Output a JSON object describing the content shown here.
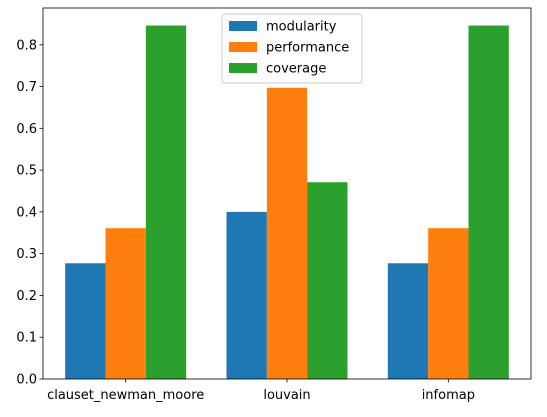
{
  "chart_data": {
    "type": "bar",
    "title": "",
    "xlabel": "",
    "ylabel": "",
    "categories": [
      "clauset_newman_moore",
      "louvain",
      "infomap"
    ],
    "series": [
      {
        "name": "modularity",
        "color": "#1f77b4",
        "values": [
          0.277,
          0.4,
          0.277
        ]
      },
      {
        "name": "performance",
        "color": "#ff7f0e",
        "values": [
          0.361,
          0.697,
          0.361
        ]
      },
      {
        "name": "coverage",
        "color": "#2ca02c",
        "values": [
          0.846,
          0.471,
          0.846
        ]
      }
    ],
    "ylim": [
      0,
      0.888
    ],
    "yticks": [
      0.0,
      0.1,
      0.2,
      0.3,
      0.4,
      0.5,
      0.6,
      0.7,
      0.8
    ],
    "ytick_labels": [
      "0.0",
      "0.1",
      "0.2",
      "0.3",
      "0.4",
      "0.5",
      "0.6",
      "0.7",
      "0.8"
    ],
    "grid": false,
    "legend": "top-center"
  }
}
